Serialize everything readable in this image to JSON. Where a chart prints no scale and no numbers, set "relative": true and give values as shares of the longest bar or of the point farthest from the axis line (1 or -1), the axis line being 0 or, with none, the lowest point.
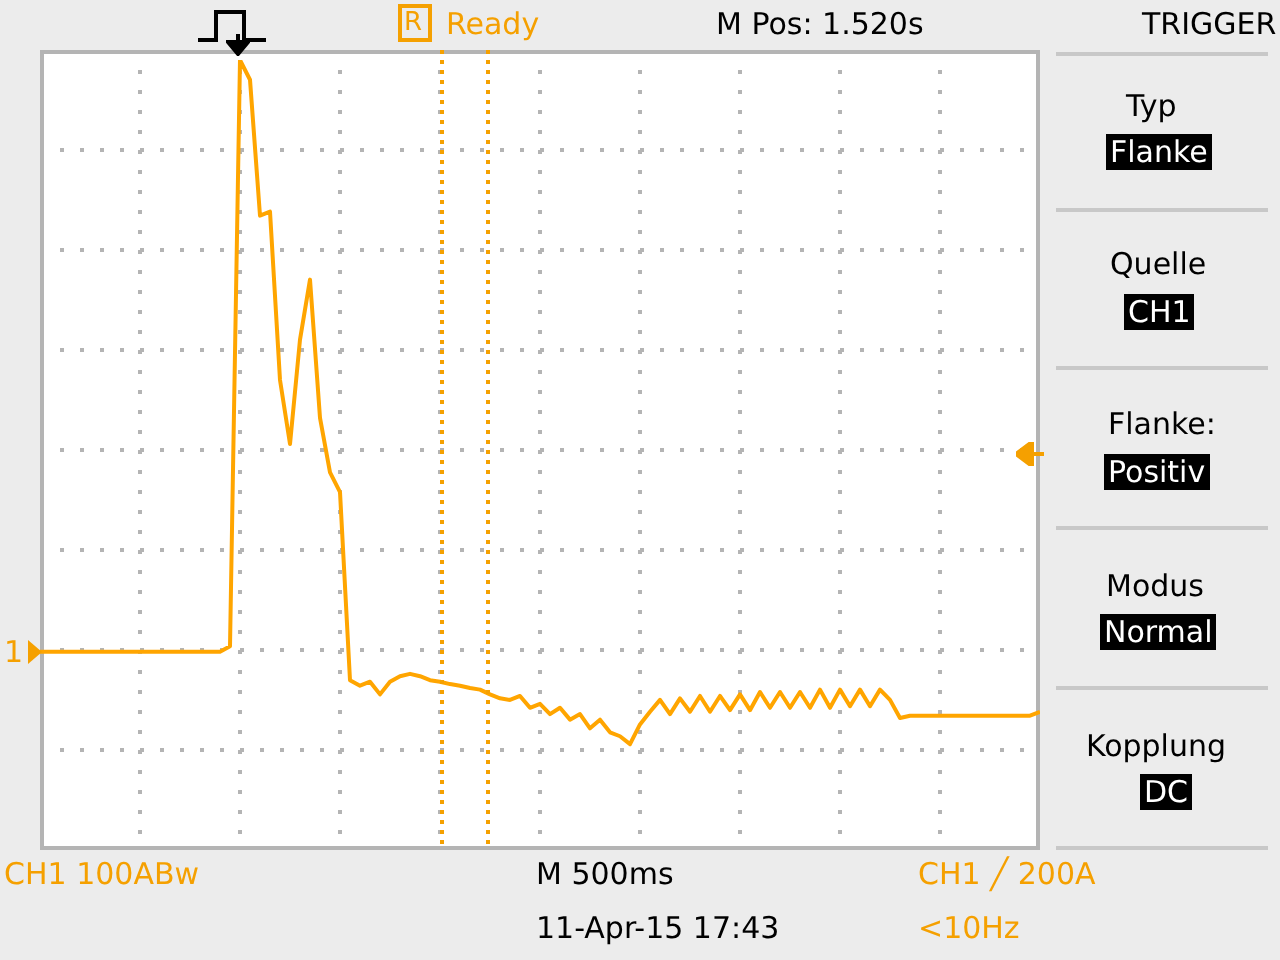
{
  "chart_data": {
    "type": "line",
    "relative": true,
    "grid": true,
    "legend": false,
    "marker": "none",
    "line_style": "solid",
    "categories": [
      null,
      null,
      null,
      null,
      null,
      null,
      null,
      null,
      null,
      null,
      null,
      null,
      null,
      null,
      null,
      null,
      null,
      null,
      null,
      null,
      null,
      null,
      null,
      null,
      null,
      null,
      null,
      null,
      null,
      null,
      null,
      null,
      null,
      null,
      null,
      null,
      null,
      null,
      null,
      null,
      null,
      null,
      null,
      null,
      null,
      null,
      null,
      null,
      null,
      null,
      null,
      null,
      null,
      null,
      null,
      null,
      null,
      null,
      null,
      null,
      null,
      null,
      null,
      null,
      null,
      null,
      null,
      null,
      null,
      null,
      null,
      null,
      null,
      null,
      null,
      null,
      null,
      null,
      null,
      null,
      null,
      null,
      null,
      null,
      null,
      null,
      null,
      null,
      null,
      null,
      null,
      null,
      null,
      null,
      null,
      null,
      null,
      null,
      null,
      null,
      null
    ],
    "series": [
      {
        "color": "#ffa500",
        "values": [
          0.251,
          0.251,
          0.251,
          0.251,
          0.251,
          0.251,
          0.251,
          0.251,
          0.251,
          0.251,
          0.251,
          0.251,
          0.251,
          0.251,
          0.251,
          0.251,
          0.251,
          0.251,
          0.251,
          0.258,
          1,
          0.975,
          0.803,
          0.808,
          0.595,
          0.514,
          0.646,
          0.722,
          0.547,
          0.478,
          0.453,
          0.215,
          0.208,
          0.213,
          0.197,
          0.213,
          0.22,
          0.223,
          0.22,
          0.215,
          0.213,
          0.21,
          0.208,
          0.205,
          0.203,
          0.197,
          0.192,
          0.19,
          0.195,
          0.18,
          0.185,
          0.172,
          0.18,
          0.165,
          0.172,
          0.154,
          0.165,
          0.149,
          0.144,
          0.134,
          0.159,
          0.175,
          0.19,
          0.172,
          0.192,
          0.175,
          0.195,
          0.175,
          0.195,
          0.177,
          0.197,
          0.177,
          0.2,
          0.18,
          0.2,
          0.18,
          0.2,
          0.18,
          0.203,
          0.18,
          0.203,
          0.182,
          0.203,
          0.182,
          0.203,
          0.19,
          0.167,
          0.17,
          0.17,
          0.17,
          0.17,
          0.17,
          0.17,
          0.17,
          0.17,
          0.17,
          0.17,
          0.17,
          0.17,
          0.17,
          0.175
        ]
      }
    ],
    "annotations": [
      "Ready",
      "M Pos: 1.520s",
      "TRIGGER",
      "Typ",
      "Flanke",
      "Quelle",
      "CH1",
      "Flanke:",
      "Positiv",
      "Modus",
      "Normal",
      "Kopplung",
      "DC",
      "CH1  100ABw",
      "M 500ms",
      "CH1 ╱ 200A",
      "11-Apr-15 17:43",
      "<10Hz",
      "1",
      "R"
    ]
  }
}
